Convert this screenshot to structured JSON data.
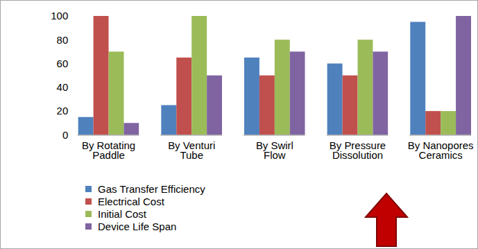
{
  "chart_data": {
    "type": "bar",
    "categories": [
      "By Rotating\nPaddle",
      "By Venturi\nTube",
      "By Swirl\nFlow",
      "By Pressure\nDissolution",
      "By Nanopores\nCeramics"
    ],
    "series": [
      {
        "name": "Gas Transfer Efficiency",
        "color": "#4f81bd",
        "values": [
          15,
          25,
          65,
          60,
          95
        ]
      },
      {
        "name": "Electrical Cost",
        "color": "#c0504d",
        "values": [
          100,
          65,
          50,
          50,
          20
        ]
      },
      {
        "name": "Initial Cost",
        "color": "#9bbb59",
        "values": [
          70,
          100,
          80,
          80,
          20
        ]
      },
      {
        "name": "Device Life Span",
        "color": "#8064a2",
        "values": [
          10,
          50,
          70,
          70,
          100
        ]
      }
    ],
    "ylim": [
      0,
      100
    ],
    "yticks": [
      0,
      20,
      40,
      60,
      80,
      100
    ],
    "grid": false,
    "legend": "bottom"
  }
}
